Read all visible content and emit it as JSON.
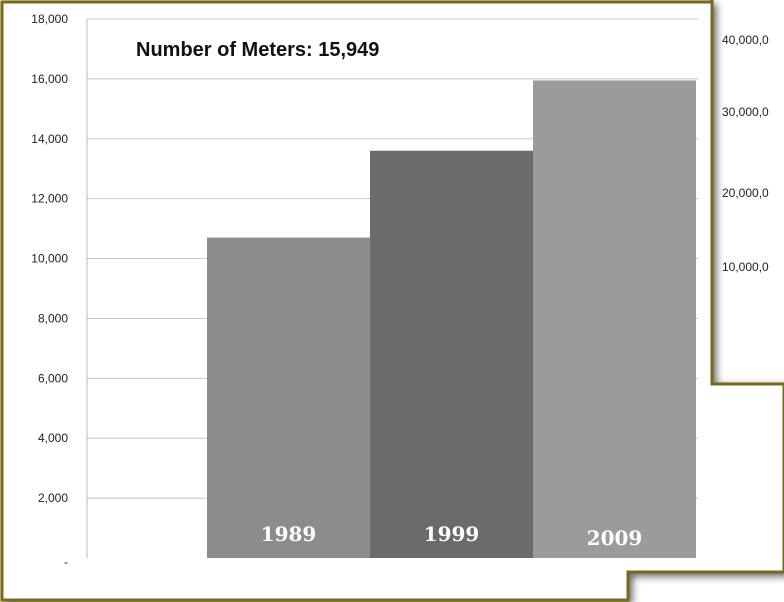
{
  "chart_data": [
    {
      "type": "bar",
      "title": "Number of Meters: 15,949",
      "categories": [
        "1989",
        "1999",
        "2009"
      ],
      "values": [
        10700,
        13600,
        15949
      ],
      "bar_colors": [
        "#8c8c8c",
        "#6b6b6b",
        "#9b9b9b"
      ],
      "ylim": [
        0,
        18000
      ],
      "y_ticks": [
        "-",
        "2,000",
        "4,000",
        "6,000",
        "8,000",
        "10,000",
        "12,000",
        "14,000",
        "16,000",
        "18,000"
      ],
      "grid": true,
      "frame_color": "#7a6a12"
    },
    {
      "type": "bar",
      "partial": true,
      "y_ticks": [
        "40,000,0",
        "30,000,0",
        "20,000,0",
        "10,000,0"
      ],
      "frame_color": "#7a6a12"
    }
  ]
}
